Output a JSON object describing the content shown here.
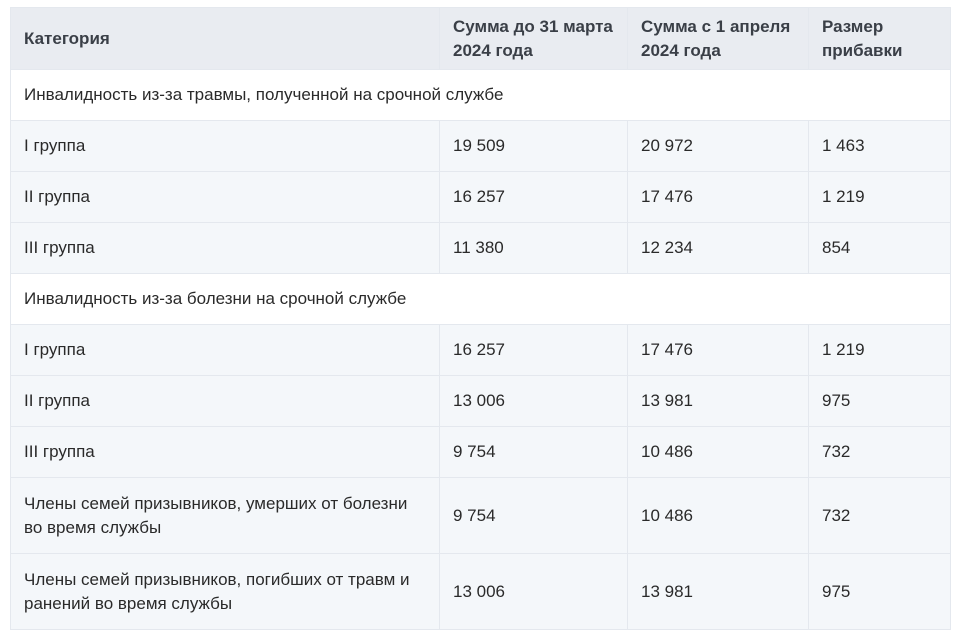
{
  "table": {
    "headers": [
      "Категория",
      "Сумма до 31 марта 2024 года",
      "Сумма с 1 апреля 2024 года",
      "Размер прибавки"
    ],
    "section1": {
      "title": "Инвалидность из-за травмы, полученной на срочной службе",
      "rows": [
        [
          "I группа",
          "19 509",
          "20 972",
          "1 463"
        ],
        [
          "II группа",
          "16 257",
          "17 476",
          "1 219"
        ],
        [
          "III группа",
          "11 380",
          "12 234",
          "854"
        ]
      ]
    },
    "section2": {
      "title": "Инвалидность из-за болезни на срочной службе",
      "rows": [
        [
          "I группа",
          "16 257",
          "17 476",
          "1 219"
        ],
        [
          "II группа",
          "13 006",
          "13 981",
          "975"
        ],
        [
          "III группа",
          "9 754",
          "10 486",
          "732"
        ],
        [
          "Члены семей призывников, умерших от болезни во время службы",
          "9 754",
          "10 486",
          "732"
        ],
        [
          "Члены семей призывников, погибших от травм и ранений во время службы",
          "13 006",
          "13 981",
          "975"
        ]
      ]
    }
  }
}
